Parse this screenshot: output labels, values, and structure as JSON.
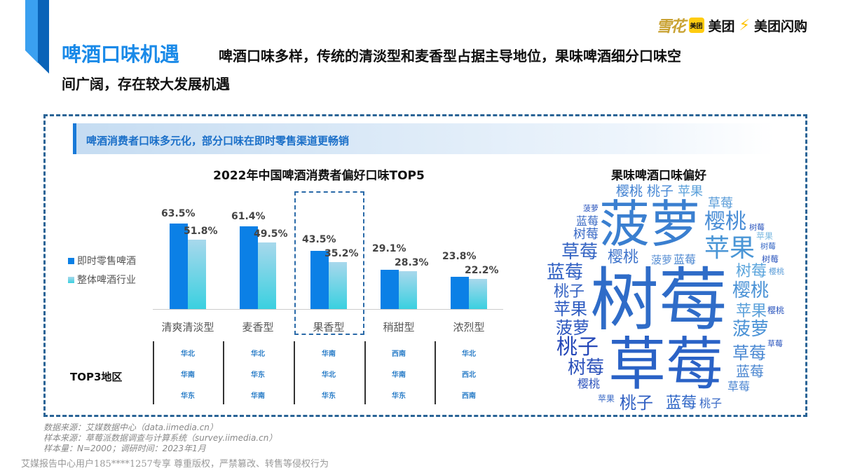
{
  "header": {
    "title": "啤酒口味机遇",
    "subtitle_line1": "啤酒口味多样，传统的清淡型和麦香型占据主导地位，果味啤酒细分口味空",
    "subtitle_line2": "间广阔，存在较大发展机遇"
  },
  "logos": {
    "snow": "雪花",
    "meituan_icon": "美团",
    "meituan": "美团",
    "flash_icon": "lightning-icon",
    "flash": "美团闪购"
  },
  "banner": "啤酒消费者口味多元化，部分口味在即时零售渠道更畅销",
  "chart_data": {
    "type": "bar",
    "title": "2022年中国啤酒消费者偏好口味TOP5",
    "categories": [
      "清爽清淡型",
      "麦香型",
      "果香型",
      "稍甜型",
      "浓烈型"
    ],
    "series": [
      {
        "name": "即时零售啤酒",
        "values": [
          63.5,
          61.4,
          43.5,
          29.1,
          23.8
        ],
        "labels": [
          "63.5%",
          "61.4%",
          "43.5%",
          "29.1%",
          "23.8%"
        ],
        "color": "#0b80e6"
      },
      {
        "name": "整体啤酒行业",
        "values": [
          51.8,
          49.5,
          35.2,
          28.3,
          22.2
        ],
        "labels": [
          "51.8%",
          "49.5%",
          "35.2%",
          "28.3%",
          "22.2%"
        ],
        "color": "#5fd3e3"
      }
    ],
    "highlighted_category": "果香型",
    "ylim": [
      0,
      70
    ]
  },
  "regions": {
    "label": "TOP3地区",
    "columns": [
      [
        "华北",
        "华南",
        "华东"
      ],
      [
        "华北",
        "华东",
        "华南"
      ],
      [
        "华南",
        "华北",
        "华东"
      ],
      [
        "西南",
        "华南",
        "华东"
      ],
      [
        "华北",
        "西北",
        "西南"
      ]
    ]
  },
  "wordcloud": {
    "title": "果味啤酒口味偏好",
    "words": [
      "菠萝",
      "树莓",
      "草莓",
      "樱桃",
      "桃子",
      "苹果",
      "蓝莓"
    ]
  },
  "notes": [
    "数据来源：艾媒数据中心（data.iimedia.cn）",
    "样本来源：草莓派数据调查与计算系统（survey.iimedia.cn）",
    "样本量：N=2000；调研时间：2023年1月"
  ],
  "watermark": "艾媒报告中心用户185****1257专享 尊重版权，严禁篡改、转售等侵权行为"
}
